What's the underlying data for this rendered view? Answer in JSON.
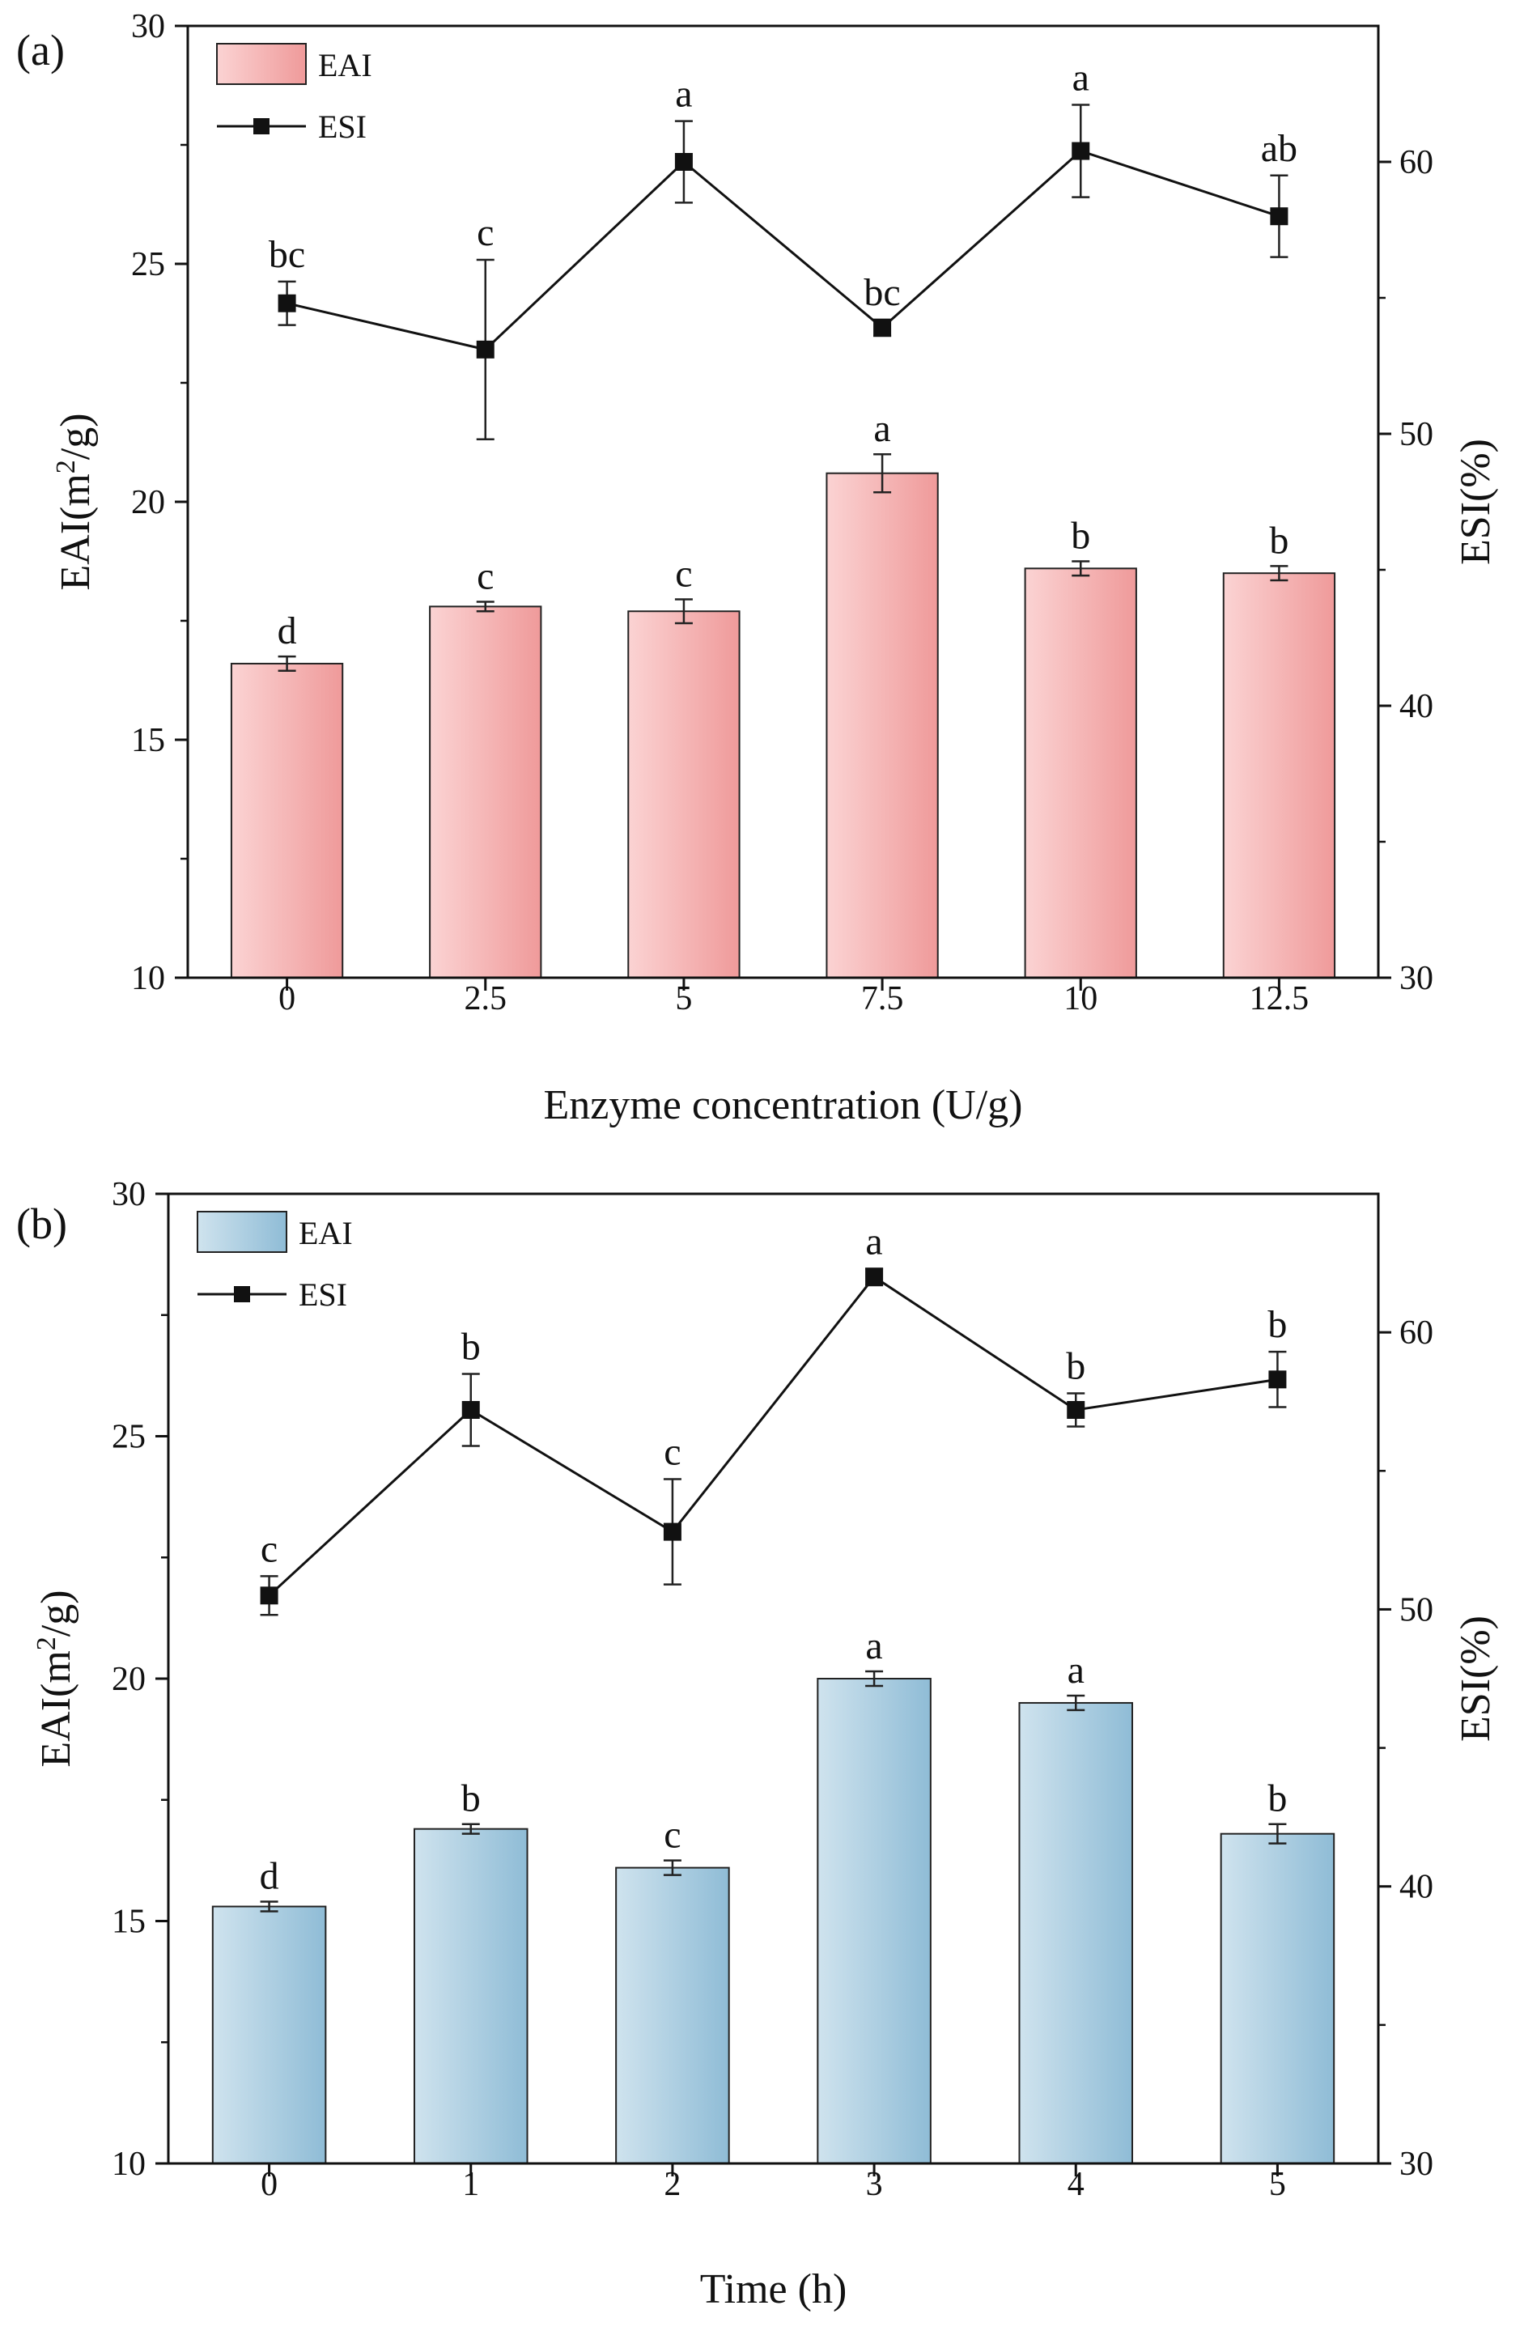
{
  "chart_data": [
    {
      "type": "bar",
      "panel_label": "(a)",
      "xlabel": "Enzyme concentration (U/g)",
      "ylabel_left": "EAI(m2/g)",
      "ylabel_left_parts": {
        "base": "EAI(m",
        "sup": "2",
        "tail": "/g)"
      },
      "ylabel_right": "ESI(%)",
      "categories": [
        "0",
        "2.5",
        "5",
        "7.5",
        "10",
        "12.5"
      ],
      "ylim_left": [
        10,
        30
      ],
      "yticks_left": [
        "10",
        "15",
        "20",
        "25",
        "30"
      ],
      "ylim_right": [
        30,
        65
      ],
      "yticks_right": [
        "30",
        "40",
        "50",
        "60"
      ],
      "legend": {
        "position": "top-left",
        "entries": [
          "EAI",
          "ESI"
        ]
      },
      "palette": {
        "bar_light": "#fbd3d3",
        "bar_dark": "#ef9a9a",
        "line": "#111111"
      },
      "series": [
        {
          "name": "EAI",
          "axis": "left",
          "kind": "bar",
          "values": [
            16.6,
            17.8,
            17.7,
            20.6,
            18.6,
            18.5
          ],
          "errors": [
            0.15,
            0.1,
            0.25,
            0.4,
            0.15,
            0.15
          ],
          "letters": [
            "d",
            "c",
            "c",
            "a",
            "b",
            "b"
          ]
        },
        {
          "name": "ESI",
          "axis": "right",
          "kind": "line",
          "values": [
            54.8,
            53.1,
            60.0,
            53.9,
            60.4,
            58.0
          ],
          "errors": [
            0.8,
            3.3,
            1.5,
            0.3,
            1.7,
            1.5
          ],
          "letters": [
            "bc",
            "c",
            "a",
            "bc",
            "a",
            "ab"
          ]
        }
      ]
    },
    {
      "type": "bar",
      "panel_label": "(b)",
      "xlabel": "Time (h)",
      "ylabel_left": "EAI(m2/g)",
      "ylabel_left_parts": {
        "base": "EAI(m",
        "sup": "2",
        "tail": "/g)"
      },
      "ylabel_right": "ESI(%)",
      "categories": [
        "0",
        "1",
        "2",
        "3",
        "4",
        "5"
      ],
      "ylim_left": [
        10,
        30
      ],
      "yticks_left": [
        "10",
        "15",
        "20",
        "25",
        "30"
      ],
      "ylim_right": [
        30,
        65
      ],
      "yticks_right": [
        "30",
        "40",
        "50",
        "60"
      ],
      "legend": {
        "position": "top-left",
        "entries": [
          "EAI",
          "ESI"
        ]
      },
      "palette": {
        "bar_light": "#cfe3ee",
        "bar_dark": "#8fbcd6",
        "line": "#111111"
      },
      "series": [
        {
          "name": "EAI",
          "axis": "left",
          "kind": "bar",
          "values": [
            15.3,
            16.9,
            16.1,
            20.0,
            19.5,
            16.8
          ],
          "errors": [
            0.1,
            0.1,
            0.15,
            0.15,
            0.15,
            0.2
          ],
          "letters": [
            "d",
            "b",
            "c",
            "a",
            "a",
            "b"
          ]
        },
        {
          "name": "ESI",
          "axis": "right",
          "kind": "line",
          "values": [
            50.5,
            57.2,
            52.8,
            62.0,
            57.2,
            58.3
          ],
          "errors": [
            0.7,
            1.3,
            1.9,
            0.3,
            0.6,
            1.0
          ],
          "letters": [
            "c",
            "b",
            "c",
            "a",
            "b",
            "b"
          ]
        }
      ]
    }
  ]
}
